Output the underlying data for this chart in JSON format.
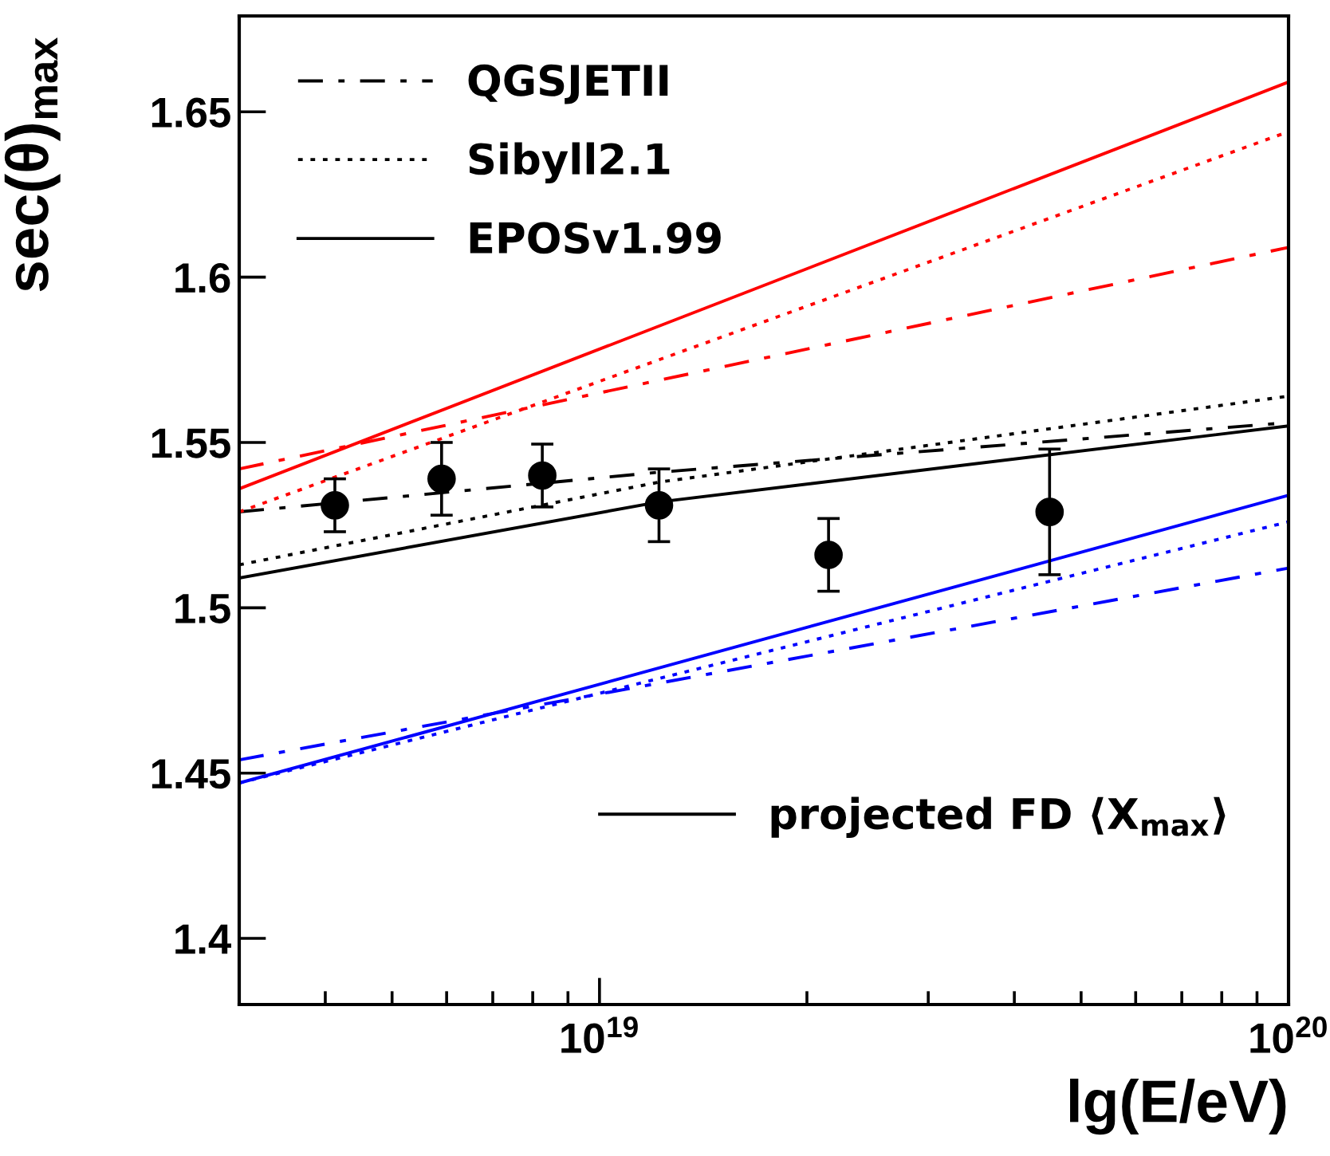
{
  "chart_data": {
    "type": "line",
    "xlabel": "lg(E/eV)",
    "ylabel": "sec(θ)$_{max}$",
    "log": "x",
    "xlim": [
      3e+18,
      1e+20
    ],
    "ylim": [
      1.38,
      1.679
    ],
    "xticks": [
      {
        "value": 1e+19,
        "label": "10$^{19}$"
      },
      {
        "value": 1e+20,
        "label": "10$^{20}$"
      }
    ],
    "yticks": [
      1.4,
      1.45,
      1.5,
      1.55,
      1.6,
      1.65
    ],
    "grid": false,
    "legend": "top left",
    "series": [
      {
        "name": "QGSJETII",
        "color": "#000000",
        "line_style": "dashed",
        "x": [
          3e+18,
          1.22e+19,
          1e+20
        ],
        "values": [
          1.529,
          1.541,
          1.556
        ]
      },
      {
        "name": "Sibyll2.1",
        "color": "#000000",
        "line_style": "dotted",
        "x": [
          3e+18,
          1.22e+19,
          1e+20
        ],
        "values": [
          1.513,
          1.538,
          1.564
        ]
      },
      {
        "name": "EPOSv1.99",
        "color": "#000000",
        "line_style": "solid",
        "x": [
          3e+18,
          1.22e+19,
          1e+20
        ],
        "values": [
          1.509,
          1.532,
          1.555
        ]
      },
      {
        "color": "#ff0000",
        "line_style": "dashed",
        "x": [
          3e+18,
          1e+20
        ],
        "values": [
          1.542,
          1.609
        ]
      },
      {
        "color": "#ff0000",
        "line_style": "dotted",
        "x": [
          3e+18,
          1e+20
        ],
        "values": [
          1.529,
          1.644
        ]
      },
      {
        "color": "#ff0000",
        "line_style": "solid",
        "x": [
          3e+18,
          1e+20
        ],
        "values": [
          1.536,
          1.659
        ]
      },
      {
        "color": "#0000ff",
        "line_style": "dashed",
        "x": [
          3e+18,
          1e+20
        ],
        "values": [
          1.454,
          1.512
        ]
      },
      {
        "color": "#0000ff",
        "line_style": "dotted",
        "x": [
          3e+18,
          1e+20
        ],
        "values": [
          1.447,
          1.526
        ]
      },
      {
        "color": "#0000ff",
        "line_style": "solid",
        "x": [
          3e+18,
          1e+20
        ],
        "values": [
          1.447,
          1.534
        ]
      },
      {
        "name": "projected FD ⟨X$_{max}$⟩",
        "type": "scatter",
        "color": "#000000",
        "x": [
          4.13e+18,
          5.9e+18,
          8.26e+18,
          1.22e+19,
          2.15e+19,
          4.5e+19
        ],
        "values": [
          1.531,
          1.539,
          1.54,
          1.531,
          1.516,
          1.529
        ],
        "errors": [
          0.008,
          0.011,
          0.0095,
          0.011,
          0.011,
          0.019
        ]
      }
    ]
  }
}
